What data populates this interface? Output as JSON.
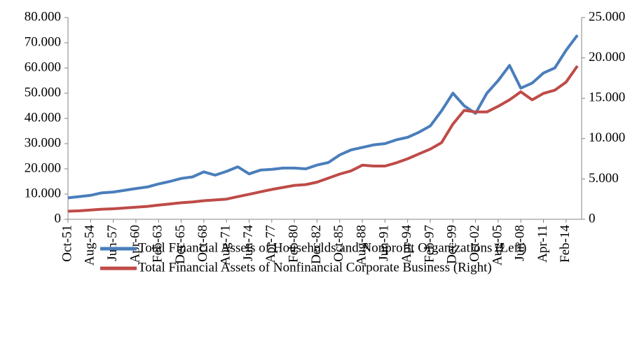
{
  "chart_data": {
    "type": "line",
    "categories": [
      "Oct-51",
      null,
      "Aug-54",
      null,
      "Jun-57",
      null,
      "Apr-60",
      null,
      "Feb-63",
      null,
      "Dec-65",
      null,
      "Oct-68",
      null,
      "Aug-71",
      null,
      "Jun-74",
      null,
      "Apr-77",
      null,
      "Feb-80",
      null,
      "Dec-82",
      null,
      "Oct-85",
      null,
      "Aug-88",
      null,
      "Jun-91",
      null,
      "Apr-94",
      null,
      "Feb-97",
      null,
      "Dec-99",
      null,
      "Oct-02",
      null,
      "Aug-05",
      null,
      "Jun-08",
      null,
      "Apr-11",
      null,
      "Feb-14",
      null
    ],
    "series": [
      {
        "name": "Total Financial Assets of Households and Nonprofit Organizations (Left)",
        "color": "#4a7ebb",
        "axis": "y",
        "values": [
          8500,
          9000,
          9500,
          10500,
          10800,
          11500,
          12200,
          12800,
          14000,
          15000,
          16200,
          16800,
          18800,
          17500,
          19000,
          20800,
          18000,
          19500,
          19800,
          20300,
          20300,
          20000,
          21500,
          22500,
          25500,
          27500,
          28500,
          29500,
          30000,
          31500,
          32500,
          34500,
          37000,
          43000,
          50000,
          45000,
          42000,
          50000,
          55000,
          61000,
          52000,
          54000,
          58000,
          60000,
          67000,
          73000
        ]
      },
      {
        "name": "Total Financial Assets of Nonfinancial Corporate Business (Right)",
        "color": "#be4b48",
        "axis": "y2",
        "values": [
          1000,
          1050,
          1150,
          1250,
          1300,
          1400,
          1500,
          1600,
          1750,
          1900,
          2050,
          2150,
          2300,
          2400,
          2500,
          2800,
          3100,
          3400,
          3700,
          3950,
          4200,
          4300,
          4600,
          5100,
          5600,
          6000,
          6700,
          6600,
          6600,
          7000,
          7500,
          8100,
          8700,
          9500,
          11800,
          13500,
          13300,
          13300,
          14000,
          14800,
          15800,
          14800,
          15600,
          16000,
          17000,
          19000
        ]
      }
    ],
    "ylim": [
      0,
      80000
    ],
    "yticks": [
      0,
      {
        "value": 10000,
        "label": "10.000"
      },
      {
        "value": 20000,
        "label": "20.000"
      },
      {
        "value": 30000,
        "label": "30.000"
      },
      {
        "value": 40000,
        "label": "40.000"
      },
      {
        "value": 50000,
        "label": "50.000"
      },
      {
        "value": 60000,
        "label": "60.000"
      },
      {
        "value": 70000,
        "label": "70.000"
      },
      {
        "value": 80000,
        "label": "80.000"
      }
    ],
    "y2lim": [
      0,
      25000
    ],
    "y2ticks": [
      0,
      {
        "value": 5000,
        "label": "5.000"
      },
      {
        "value": 10000,
        "label": "10.000"
      },
      {
        "value": 15000,
        "label": "15.000"
      },
      {
        "value": 20000,
        "label": "20.000"
      },
      {
        "value": 25000,
        "label": "25.000"
      }
    ],
    "grid": false,
    "legend": "bottom"
  }
}
